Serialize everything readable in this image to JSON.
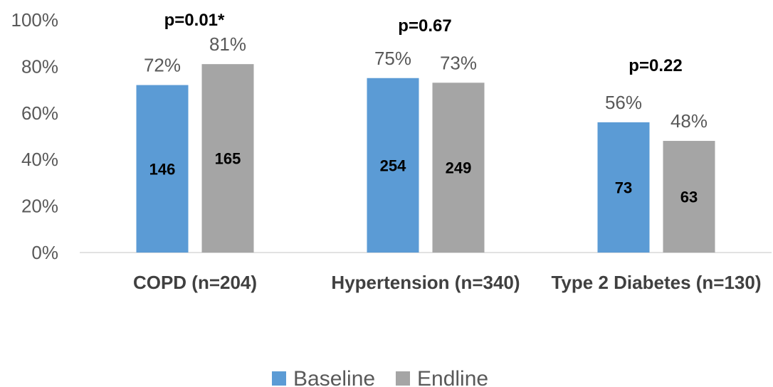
{
  "chart_data": {
    "type": "bar",
    "categories": [
      "COPD (n=204)",
      "Hypertension (n=340)",
      "Type 2 Diabetes (n=130)"
    ],
    "series": [
      {
        "name": "Baseline",
        "color": "#5b9bd5",
        "values": [
          72,
          75,
          56
        ],
        "value_labels": [
          "72%",
          "75%",
          "56%"
        ],
        "count_labels": [
          "146",
          "254",
          "73"
        ]
      },
      {
        "name": "Endline",
        "color": "#a5a5a5",
        "values": [
          81,
          73,
          48
        ],
        "value_labels": [
          "81%",
          "73%",
          "48%"
        ],
        "count_labels": [
          "165",
          "249",
          "63"
        ]
      }
    ],
    "annotations": [
      "p=0.01*",
      "p=0.67",
      "p=0.22"
    ],
    "y_ticks": [
      "0%",
      "20%",
      "40%",
      "60%",
      "80%",
      "100%"
    ],
    "ylim": [
      0,
      100
    ],
    "grid": false,
    "legend": "bottom"
  }
}
